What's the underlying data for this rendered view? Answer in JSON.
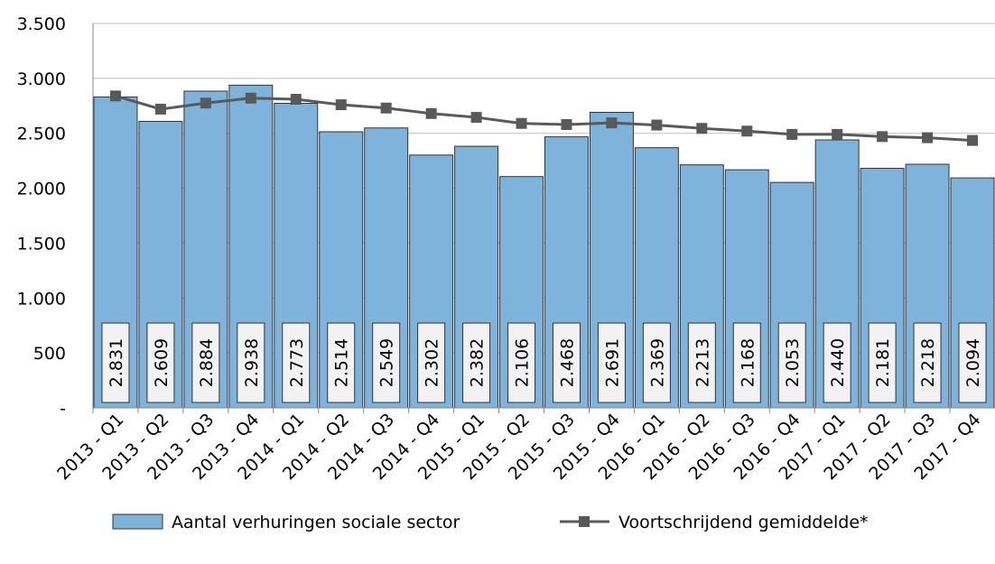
{
  "chart_data": {
    "type": "bar-line",
    "categories": [
      "2013 - Q1",
      "2013 - Q2",
      "2013 - Q3",
      "2013 - Q4",
      "2014 - Q1",
      "2014 - Q2",
      "2014 - Q3",
      "2014 - Q4",
      "2015 - Q1",
      "2015 - Q2",
      "2015 - Q3",
      "2015 - Q4",
      "2016 - Q1",
      "2016 - Q2",
      "2016 - Q3",
      "2016 - Q4",
      "2017 - Q1",
      "2017 - Q2",
      "2017 - Q3",
      "2017 - Q4"
    ],
    "series": [
      {
        "name": "Aantal verhuringen sociale sector",
        "type": "bar",
        "color": "#7eb3dc",
        "values": [
          2831,
          2609,
          2884,
          2938,
          2773,
          2514,
          2549,
          2302,
          2382,
          2106,
          2468,
          2691,
          2369,
          2213,
          2168,
          2053,
          2440,
          2181,
          2218,
          2094
        ],
        "value_labels": [
          "2.831",
          "2.609",
          "2.884",
          "2.938",
          "2.773",
          "2.514",
          "2.549",
          "2.302",
          "2.382",
          "2.106",
          "2.468",
          "2.691",
          "2.369",
          "2.213",
          "2.168",
          "2.053",
          "2.440",
          "2.181",
          "2.218",
          "2.094"
        ]
      },
      {
        "name": "Voortschrijdend gemiddelde*",
        "type": "line",
        "color": "#595959",
        "values": [
          2840,
          2720,
          2775,
          2820,
          2810,
          2760,
          2730,
          2680,
          2645,
          2590,
          2580,
          2595,
          2575,
          2545,
          2520,
          2490,
          2490,
          2470,
          2460,
          2435
        ]
      }
    ],
    "ylim": [
      0,
      3500
    ],
    "yticks": [
      {
        "value": 0,
        "label": "-"
      },
      500,
      {
        "value": 1000,
        "label": "1.000"
      },
      {
        "value": 1500,
        "label": "1.500"
      },
      {
        "value": 2000,
        "label": "2.000"
      },
      {
        "value": 2500,
        "label": "2.500"
      },
      {
        "value": 3000,
        "label": "3.000"
      },
      {
        "value": 3500,
        "label": "3.500"
      }
    ],
    "grid": true,
    "legend": "bottom"
  }
}
